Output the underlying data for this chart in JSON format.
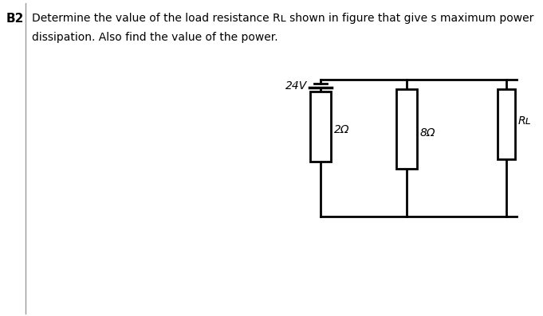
{
  "title_label": "B2",
  "question_line1": "Determine the value of the load resistance Rʟ shown in figure that give s maximum power",
  "question_line2": "dissipation. Also find the value of the power.",
  "bg_color": "#ffffff",
  "line_color": "#000000",
  "text_color": "#000000",
  "voltage_label": "24V",
  "r1_label": "2Ω",
  "r2_label": "8Ω",
  "r3_label": "Rʟ",
  "fig_width": 6.81,
  "fig_height": 3.97,
  "dpi": 100
}
